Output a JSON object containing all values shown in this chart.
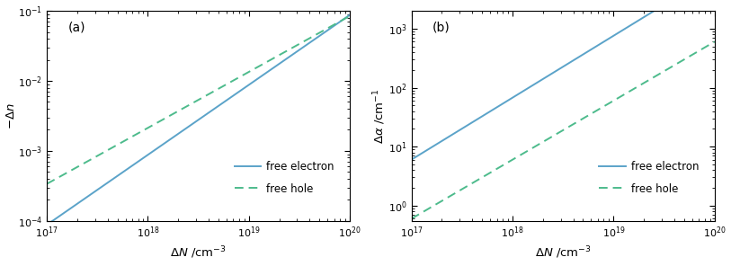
{
  "panel_a": {
    "label": "(a)",
    "ylabel": "$-\\Delta n$",
    "xlabel": "$\\Delta N$ /cm$^{-3}$",
    "xlim": [
      1e+17,
      1e+20
    ],
    "ylim": [
      0.0001,
      0.1
    ],
    "electron": {
      "coeff": 8.8e-22,
      "power": 1.0,
      "color": "#5ba3c9",
      "linestyle": "solid",
      "label": "free electron"
    },
    "hole": {
      "coeff": 8.5e-18,
      "power": 0.8,
      "color": "#4dbb8c",
      "linestyle": "dashed",
      "label": "free hole"
    }
  },
  "panel_b": {
    "label": "(b)",
    "ylabel": "$\\Delta\\alpha$ /cm$^{-1}$",
    "xlabel": "$\\Delta N$ /cm$^{-3}$",
    "xlim": [
      1e+17,
      1e+20
    ],
    "ylim": [
      0.55,
      2000
    ],
    "electron": {
      "coeff": 8.5e-18,
      "power": 1.05,
      "color": "#5ba3c9",
      "linestyle": "solid",
      "label": "free electron"
    },
    "hole": {
      "coeff": 6e-18,
      "power": 1.0,
      "color": "#4dbb8c",
      "linestyle": "dashed",
      "label": "free hole"
    }
  },
  "linewidth": 1.4,
  "legend_fontsize": 8.5,
  "tick_fontsize": 8.0,
  "label_fontsize": 9.5,
  "panel_label_fontsize": 10,
  "bg_color": "#ffffff"
}
